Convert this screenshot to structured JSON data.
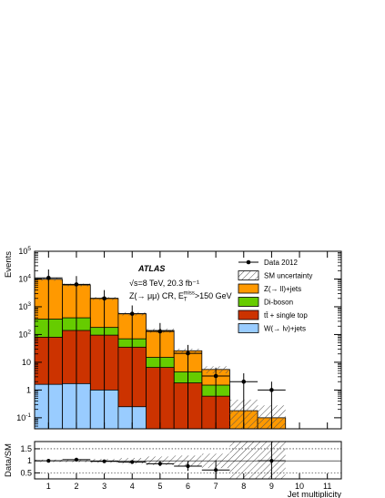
{
  "chart_data": {
    "type": "bar",
    "ylog": true,
    "annotations": {
      "experiment": "ATLAS",
      "energy_line": "√s=8 TeV, 20.3 fb⁻¹",
      "region_line": "Z(→ μμ) CR, E_T^miss>150 GeV"
    },
    "axes": {
      "xlabel": "Jet multiplicity",
      "ylabel_main": "Events",
      "ylabel_ratio": "Data/SM",
      "x_range": [
        0.5,
        11.5
      ],
      "y_range": [
        0.04,
        100000
      ],
      "ratio_range": [
        0.25,
        1.8
      ],
      "x_ticks": [
        "1",
        "2",
        "3",
        "4",
        "5",
        "6",
        "7",
        "8",
        "9",
        "10",
        "11"
      ],
      "y_ticks": [
        {
          "value": 0.1,
          "base": "10",
          "exp": "-1"
        },
        {
          "value": 1,
          "base": "1",
          "exp": ""
        },
        {
          "value": 10,
          "base": "10",
          "exp": ""
        },
        {
          "value": 100,
          "base": "10",
          "exp": "2"
        },
        {
          "value": 1000,
          "base": "10",
          "exp": "3"
        },
        {
          "value": 10000,
          "base": "10",
          "exp": "4"
        },
        {
          "value": 100000,
          "base": "10",
          "exp": "5"
        }
      ],
      "ratio_ticks": [
        "0.5",
        "1",
        "1.5"
      ]
    },
    "bins": [
      1,
      2,
      3,
      4,
      5,
      6,
      7,
      8,
      9,
      10,
      11
    ],
    "stack_order_bottom_to_top": [
      "W(→ lν)+jets",
      "tt̄ + single top",
      "Di-boson",
      "Z(→ ll)+jets"
    ],
    "stacked_totals": {
      "W(→ lν)+jets": [
        1.6,
        1.7,
        1.0,
        0.25,
        0,
        0,
        0,
        0,
        0,
        0,
        0
      ],
      "tt̄ + single top": [
        80,
        140,
        95,
        35,
        6.5,
        1.8,
        0.6,
        0,
        0,
        0,
        0
      ],
      "Di-boson": [
        360,
        400,
        180,
        70,
        15,
        4.5,
        1.5,
        0,
        0,
        0,
        0
      ],
      "Z(→ ll)+jets": [
        9800,
        6100,
        2000,
        560,
        140,
        26,
        5.5,
        0.18,
        0.1,
        0,
        0
      ]
    },
    "sm_uncertainty_band": {
      "lo": [
        8700,
        5400,
        1750,
        480,
        115,
        21,
        4.0,
        0.04,
        0.04,
        0,
        0
      ],
      "hi": [
        10900,
        6800,
        2250,
        640,
        165,
        31,
        7.2,
        0.45,
        0.28,
        0,
        0
      ]
    },
    "data": {
      "name": "Data 2012",
      "x": [
        1,
        2,
        3,
        4,
        5,
        6,
        7,
        8,
        9
      ],
      "y": [
        11000,
        6400,
        2000,
        560,
        130,
        21,
        3.2,
        2.0,
        1.0
      ],
      "err_lo": [
        11000,
        6400,
        2000,
        560,
        130,
        21,
        3.2,
        2.0,
        1.0
      ],
      "err_hi": [
        11000,
        6400,
        2000,
        560,
        130,
        21,
        3.2,
        2.0,
        1.0
      ]
    },
    "ratio": {
      "x": [
        1,
        2,
        3,
        4,
        5,
        6,
        7,
        9
      ],
      "y": [
        1.0,
        1.05,
        0.98,
        0.95,
        0.88,
        0.78,
        0.62,
        1.0
      ],
      "err": [
        0.01,
        0.02,
        0.03,
        0.05,
        0.1,
        0.2,
        0.4,
        4.0
      ],
      "band_halfwidth": [
        0.05,
        0.06,
        0.08,
        0.12,
        0.18,
        0.22,
        0.3,
        1.5,
        1.5,
        0,
        0
      ]
    },
    "legend": {
      "position": "top-right",
      "entries": [
        {
          "label": "Data 2012",
          "kind": "data",
          "color": "#000000"
        },
        {
          "label": "SM uncertainty",
          "kind": "hatch",
          "color": "#444444"
        },
        {
          "label": "Z(→ ll)+jets",
          "kind": "fill",
          "color": "#ff9900"
        },
        {
          "label": "Di-boson",
          "kind": "fill",
          "color": "#66cc00"
        },
        {
          "label": "tt̄ + single top",
          "kind": "fill",
          "color": "#cc3300"
        },
        {
          "label": "W(→ lν)+jets",
          "kind": "fill",
          "color": "#99ccff"
        }
      ]
    },
    "colors": {
      "Z(→ ll)+jets": "#ff9900",
      "Di-boson": "#66cc00",
      "tt̄ + single top": "#cc3300",
      "W(→ lν)+jets": "#99ccff"
    }
  }
}
